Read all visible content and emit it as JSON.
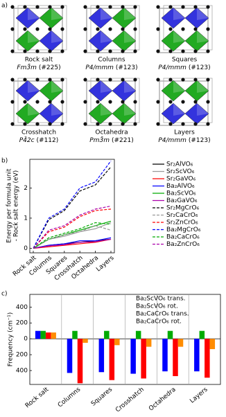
{
  "panel_labels": [
    "a)",
    "b)",
    "c)"
  ],
  "structures": [
    {
      "name": "Rock salt",
      "space_group": "Fm3̄m",
      "number": "(#225)"
    },
    {
      "name": "Columns",
      "space_group": "P4/mmm",
      "number": "(#123)"
    },
    {
      "name": "Squares",
      "space_group": "P4/mmm",
      "number": "(#123)"
    },
    {
      "name": "Crosshatch",
      "space_group": "P4̄2c",
      "number": "(#112)"
    },
    {
      "name": "Octahedra",
      "space_group": "Pm3̄m",
      "number": "(#221)"
    },
    {
      "name": "Layers",
      "space_group": "P4/mmm",
      "number": "(#123)"
    }
  ],
  "chart_data": [
    {
      "type": "line",
      "ylabel": [
        "Energy per formula unit",
        "- Rock salt energy (eV)"
      ],
      "categories": [
        "Rock salt",
        "Columns",
        "Squares",
        "Crosshatch",
        "Octahedra",
        "Layers"
      ],
      "ylim": [
        -0.15,
        2.95
      ],
      "yticks": [
        0,
        1,
        2
      ],
      "grid": false,
      "series": [
        {
          "name": "Sr₂AlVO₆",
          "color": "#000000",
          "dash": "solid",
          "values": [
            0,
            0.1,
            0.15,
            0.2,
            0.25,
            0.3
          ]
        },
        {
          "name": "Sr₂ScVO₆",
          "color": "#999999",
          "dash": "solid",
          "values": [
            0,
            0.3,
            0.4,
            0.55,
            0.65,
            0.85
          ]
        },
        {
          "name": "Sr₂GaVO₆",
          "color": "#ff0000",
          "dash": "solid",
          "values": [
            0,
            0.05,
            0.1,
            0.15,
            0.2,
            0.3
          ]
        },
        {
          "name": "Ba₂AlVO₆",
          "color": "#0000ff",
          "dash": "solid",
          "values": [
            0,
            0.1,
            0.15,
            0.25,
            0.25,
            0.35
          ]
        },
        {
          "name": "Ba₂ScVO₆",
          "color": "#00aa00",
          "dash": "solid",
          "values": [
            0,
            0.3,
            0.45,
            0.6,
            0.75,
            0.9
          ]
        },
        {
          "name": "Ba₂GaVO₆",
          "color": "#aa00aa",
          "dash": "solid",
          "values": [
            0,
            0.08,
            0.12,
            0.2,
            0.22,
            0.3
          ]
        },
        {
          "name": "Sr₂MgCrO₆",
          "color": "#000000",
          "dash": "dashed",
          "values": [
            0,
            0.95,
            1.25,
            1.9,
            2.1,
            2.7
          ]
        },
        {
          "name": "Sr₂CaCrO₆",
          "color": "#999999",
          "dash": "dashed",
          "values": [
            0,
            0.3,
            0.45,
            0.55,
            0.75,
            0.6
          ]
        },
        {
          "name": "Sr₂ZnCrO₆",
          "color": "#ff0000",
          "dash": "dashed",
          "values": [
            0,
            0.55,
            0.7,
            1.05,
            1.25,
            1.3
          ]
        },
        {
          "name": "Ba₂MgCrO₆",
          "color": "#0000ff",
          "dash": "dashed",
          "values": [
            0,
            1.0,
            1.3,
            2.0,
            2.2,
            2.9
          ]
        },
        {
          "name": "Ba₂CaCrO₆",
          "color": "#00aa00",
          "dash": "dashed",
          "values": [
            0,
            0.35,
            0.5,
            0.65,
            0.85,
            0.8
          ]
        },
        {
          "name": "Ba₂ZnCrO₆",
          "color": "#aa00aa",
          "dash": "dashed",
          "values": [
            0,
            0.6,
            0.75,
            1.1,
            1.3,
            1.4
          ]
        }
      ]
    },
    {
      "type": "bar",
      "ylabel": "Frequency (cm⁻¹)",
      "categories": [
        "Rock salt",
        "Columns",
        "Squares",
        "Crosshatch",
        "Octahedra",
        "Layers"
      ],
      "ylim": [
        -575,
        560
      ],
      "yticks": [
        {
          "value": -400,
          "label": "400"
        },
        {
          "value": -200,
          "label": "200"
        },
        0,
        200,
        400
      ],
      "grid": false,
      "series": [
        {
          "name": "Ba₂ScVO₆ trans.",
          "color": "#0000ff",
          "values": [
            100,
            -430,
            -420,
            -440,
            -410,
            -410
          ]
        },
        {
          "name": "Ba₂ScVO₆ rot.",
          "color": "#00aa00",
          "values": [
            100,
            100,
            100,
            100,
            100,
            100
          ]
        },
        {
          "name": "Ba₂CaCrO₆ trans.",
          "color": "#ff0000",
          "values": [
            80,
            -560,
            -520,
            -500,
            -470,
            -490
          ]
        },
        {
          "name": "Ba₂CaCrO₆ rot.",
          "color": "#ff8c00",
          "values": [
            80,
            -50,
            -80,
            -100,
            -100,
            -130
          ]
        }
      ]
    }
  ]
}
